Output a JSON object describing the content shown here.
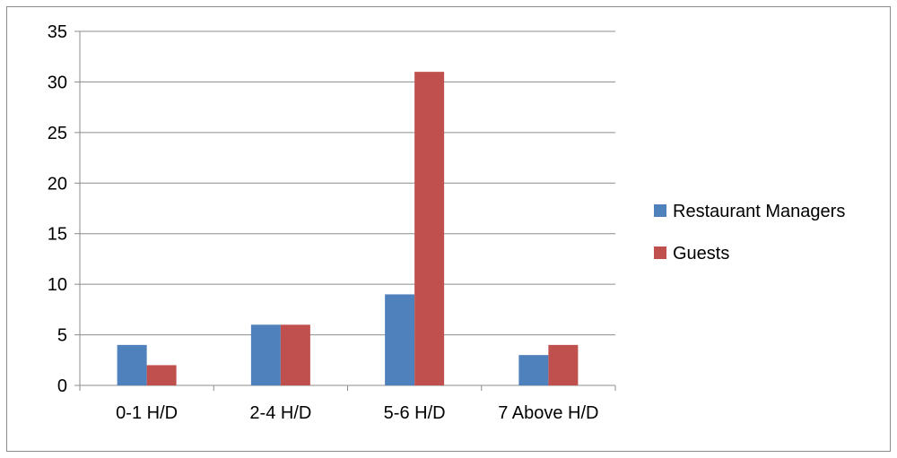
{
  "chart_data": {
    "type": "bar",
    "title": "",
    "xlabel": "",
    "ylabel": "",
    "categories": [
      "0-1 H/D",
      "2-4 H/D",
      "5-6 H/D",
      "7 Above H/D"
    ],
    "series": [
      {
        "name": "Restaurant Managers",
        "color": "#4f81bd",
        "values": [
          4,
          6,
          9,
          3
        ]
      },
      {
        "name": "Guests",
        "color": "#c0504d",
        "values": [
          2,
          6,
          31,
          4
        ]
      }
    ],
    "ylim": [
      0,
      35
    ],
    "yticks": [
      0,
      5,
      10,
      15,
      20,
      25,
      30,
      35
    ],
    "grid": true,
    "legend_position": "right"
  }
}
